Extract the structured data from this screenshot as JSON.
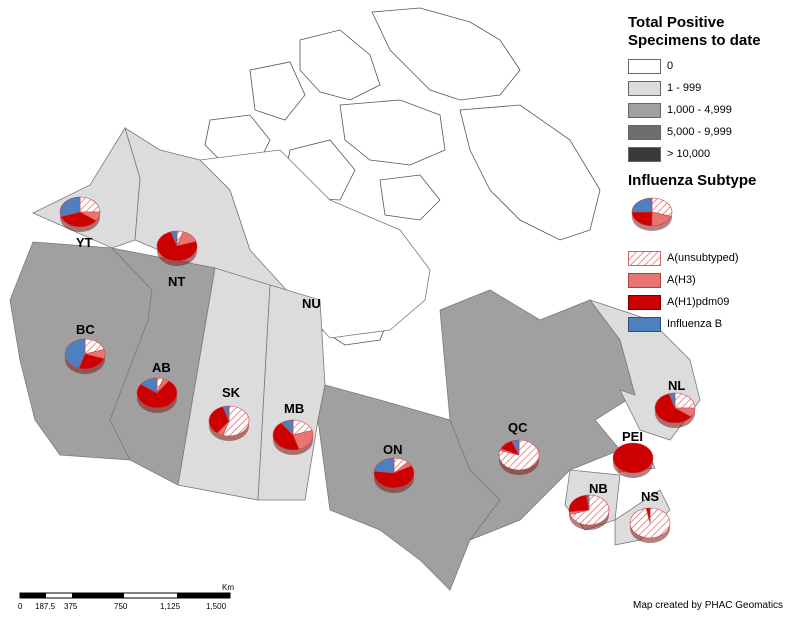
{
  "legend": {
    "title_line1": "Total Positive",
    "title_line2": "Specimens to date",
    "classes": [
      {
        "label": "0",
        "color": "#ffffff"
      },
      {
        "label": "1 - 999",
        "color": "#dcdcdc"
      },
      {
        "label": "1,000 - 4,999",
        "color": "#a0a0a0"
      },
      {
        "label": "5,000 - 9,999",
        "color": "#6e6e6e"
      },
      {
        "label": "> 10,000",
        "color": "#3a3a3a"
      }
    ],
    "subtype_title": "Influenza Subtype",
    "subtypes": [
      {
        "label": "A(unsubtyped)",
        "color": "#ffffff",
        "hatch": "#e06060"
      },
      {
        "label": "A(H3)",
        "color": "#e8756f"
      },
      {
        "label": "A(H1)pdm09",
        "color": "#cc0000"
      },
      {
        "label": "Influenza B",
        "color": "#4e7fbf"
      }
    ]
  },
  "provinces": [
    {
      "code": "YT",
      "shade": "#dcdcdc"
    },
    {
      "code": "NT",
      "shade": "#dcdcdc"
    },
    {
      "code": "NU",
      "shade": "#ffffff"
    },
    {
      "code": "BC",
      "shade": "#a0a0a0"
    },
    {
      "code": "AB",
      "shade": "#a0a0a0"
    },
    {
      "code": "SK",
      "shade": "#dcdcdc"
    },
    {
      "code": "MB",
      "shade": "#dcdcdc"
    },
    {
      "code": "ON",
      "shade": "#a0a0a0"
    },
    {
      "code": "QC",
      "shade": "#a0a0a0"
    },
    {
      "code": "NL",
      "shade": "#dcdcdc"
    },
    {
      "code": "PEI",
      "shade": "#dcdcdc"
    },
    {
      "code": "NB",
      "shade": "#dcdcdc"
    },
    {
      "code": "NS",
      "shade": "#dcdcdc"
    }
  ],
  "pies": {
    "YT": [
      {
        "s": "A(unsubtyped)",
        "v": 25
      },
      {
        "s": "A(H3)",
        "v": 10
      },
      {
        "s": "A(H1)pdm09",
        "v": 35
      },
      {
        "s": "Influenza B",
        "v": 30
      }
    ],
    "NT": [
      {
        "s": "A(unsubtyped)",
        "v": 5
      },
      {
        "s": "A(H3)",
        "v": 15
      },
      {
        "s": "A(H1)pdm09",
        "v": 75
      },
      {
        "s": "Influenza B",
        "v": 5
      }
    ],
    "BC": [
      {
        "s": "A(unsubtyped)",
        "v": 20
      },
      {
        "s": "A(H3)",
        "v": 10
      },
      {
        "s": "A(H1)pdm09",
        "v": 25
      },
      {
        "s": "Influenza B",
        "v": 45
      }
    ],
    "AB": [
      {
        "s": "A(unsubtyped)",
        "v": 5
      },
      {
        "s": "A(H3)",
        "v": 5
      },
      {
        "s": "A(H1)pdm09",
        "v": 75
      },
      {
        "s": "Influenza B",
        "v": 15
      }
    ],
    "SK": [
      {
        "s": "A(unsubtyped)",
        "v": 55
      },
      {
        "s": "A(H3)",
        "v": 5
      },
      {
        "s": "A(H1)pdm09",
        "v": 35
      },
      {
        "s": "Influenza B",
        "v": 5
      }
    ],
    "MB": [
      {
        "s": "A(unsubtyped)",
        "v": 20
      },
      {
        "s": "A(H3)",
        "v": 25
      },
      {
        "s": "A(H1)pdm09",
        "v": 45
      },
      {
        "s": "Influenza B",
        "v": 10
      }
    ],
    "ON": [
      {
        "s": "A(unsubtyped)",
        "v": 12
      },
      {
        "s": "A(H3)",
        "v": 5
      },
      {
        "s": "A(H1)pdm09",
        "v": 60
      },
      {
        "s": "Influenza B",
        "v": 23
      }
    ],
    "QC": [
      {
        "s": "A(unsubtyped)",
        "v": 80
      },
      {
        "s": "A(H3)",
        "v": 2
      },
      {
        "s": "A(H1)pdm09",
        "v": 12
      },
      {
        "s": "Influenza B",
        "v": 6
      }
    ],
    "NL": [
      {
        "s": "A(unsubtyped)",
        "v": 25
      },
      {
        "s": "A(H3)",
        "v": 10
      },
      {
        "s": "A(H1)pdm09",
        "v": 60
      },
      {
        "s": "Influenza B",
        "v": 5
      }
    ],
    "PEI": [
      {
        "s": "A(unsubtyped)",
        "v": 0
      },
      {
        "s": "A(H3)",
        "v": 0
      },
      {
        "s": "A(H1)pdm09",
        "v": 100
      },
      {
        "s": "Influenza B",
        "v": 0
      }
    ],
    "NB": [
      {
        "s": "A(unsubtyped)",
        "v": 70
      },
      {
        "s": "A(H3)",
        "v": 3
      },
      {
        "s": "A(H1)pdm09",
        "v": 25
      },
      {
        "s": "Influenza B",
        "v": 2
      }
    ],
    "NS": [
      {
        "s": "A(unsubtyped)",
        "v": 97
      },
      {
        "s": "A(H3)",
        "v": 0
      },
      {
        "s": "A(H1)pdm09",
        "v": 3
      },
      {
        "s": "Influenza B",
        "v": 0
      }
    ],
    "Legend": [
      {
        "s": "A(unsubtyped)",
        "v": 30
      },
      {
        "s": "A(H3)",
        "v": 20
      },
      {
        "s": "A(H1)pdm09",
        "v": 25
      },
      {
        "s": "Influenza B",
        "v": 25
      }
    ]
  },
  "scale": {
    "unit": "Km",
    "ticks": [
      "0",
      "187.5",
      "375",
      "750",
      "1,125",
      "1,500"
    ]
  },
  "credit": "Map created by PHAC Geomatics"
}
